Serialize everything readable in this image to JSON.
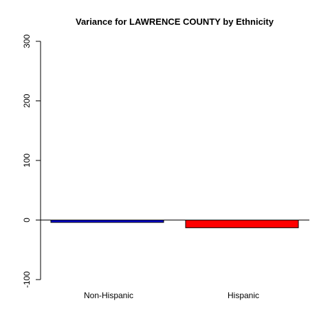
{
  "chart_data": {
    "type": "bar",
    "title": "Variance for LAWRENCE COUNTY by Ethnicity",
    "xlabel": "",
    "ylabel": "",
    "categories": [
      "Non-Hispanic",
      "Hispanic"
    ],
    "values": [
      -4,
      -13
    ],
    "colors": [
      "#0000cd",
      "#ff0000"
    ],
    "ylim": [
      -100,
      300
    ],
    "yticks": [
      -100,
      0,
      100,
      200,
      300
    ],
    "baseline": 0,
    "grid": false,
    "legend": "none"
  }
}
